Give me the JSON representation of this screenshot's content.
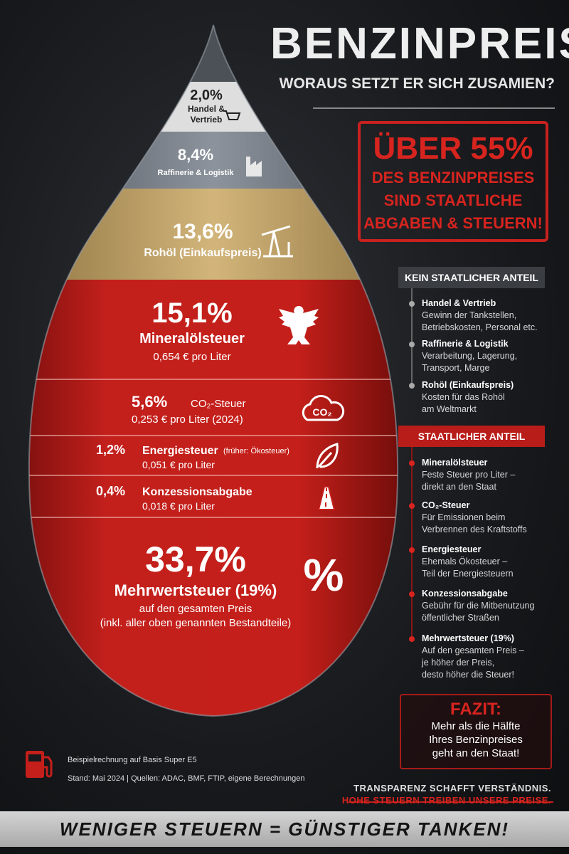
{
  "header": {
    "title": "BENZINPREIS",
    "subtitle": "WORAUS SETZT ER SICH ZUSAMIEN?"
  },
  "callout": {
    "headline": "ÜBER 55%",
    "lines": [
      "DES BENZINPREISES",
      "SIND STAATLICHE",
      "ABGABEN & STEUERN!"
    ]
  },
  "drop": {
    "segments": [
      {
        "percent": "2,0%",
        "lines": [
          "Handel &",
          "Vertrieb"
        ]
      },
      {
        "percent": "8,4%",
        "label": "Raffinerie & Logistik"
      },
      {
        "percent": "13,6%",
        "label": "Rohöl (Einkaufspreis)"
      },
      {
        "percent": "15,1%",
        "label": "Mineralölsteuer",
        "detail": "0,654 € pro Liter"
      },
      {
        "percent": "5,6%",
        "label": "CO₂-Steuer",
        "detail": "0,253 € pro Liter (2024)",
        "icon_text": "CO₂"
      },
      {
        "percent": "1,2%",
        "label": "Energiesteuer",
        "note": "(früher: Ökosteuer)",
        "detail": "0,051 € pro Liter"
      },
      {
        "percent": "0,4%",
        "label": "Konzessionsabgabe",
        "detail": "0,018 € pro Liter"
      },
      {
        "percent": "33,7%",
        "label": "Mehrwertsteuer (19%)",
        "details": [
          "auf den gesamten Preis",
          "(inkl. aller oben genannten Bestandteile)"
        ],
        "icon_text": "%"
      }
    ]
  },
  "panel": {
    "sections": [
      {
        "heading": "KEIN STAATLICHER ANTEIL",
        "items": [
          {
            "title": "Handel & Vertrieb",
            "text": "Gewinn der Tankstellen,\nBetriebskosten, Personal etc."
          },
          {
            "title": "Raffinerie & Logistik",
            "text": "Verarbeitung, Lagerung,\nTransport, Marge"
          },
          {
            "title": "Rohöl (Einkaufspreis)",
            "text": "Kosten für das Rohöl\nam Weltmarkt"
          }
        ]
      },
      {
        "heading": "STAATLICHER ANTEIL",
        "items": [
          {
            "title": "Mineralölsteuer",
            "text": "Feste Steuer pro Liter –\ndirekt an den Staat"
          },
          {
            "title": "CO₂-Steuer",
            "text": "Für Emissionen beim\nVerbrennen des Kraftstoffs"
          },
          {
            "title": "Energiesteuer",
            "text": "Ehemals Ökosteuer –\nTeil der Energiesteuern"
          },
          {
            "title": "Konzessionsabgabe",
            "text": "Gebühr für die Mitbenutzung\nöffentlicher Straßen"
          },
          {
            "title": "Mehrwertsteuer (19%)",
            "text": "Auf den gesamten Preis –\nje höher der Preis,\ndesto höher die Steuer!"
          }
        ]
      }
    ]
  },
  "conclusion": {
    "heading": "FAZIT:",
    "text": "Mehr als die Hälfte\nIhres Benzinpreises\ngeht an den Staat!"
  },
  "footer": {
    "note": "Beispielrechnung auf Basis Super E5",
    "source": "Stand: Mai 2024  |  Quellen: ADAC, BMF, FTIP, eigene Berechnungen",
    "slogan_1": "TRANSPARENZ SCHAFFT VERSTÄNDNIS.",
    "slogan_2": "HOHE STEUERN TREIBEN UNSERE PREISE.",
    "banner": "WENIGER STEUERN = GÜNSTIGER TANKEN!"
  }
}
